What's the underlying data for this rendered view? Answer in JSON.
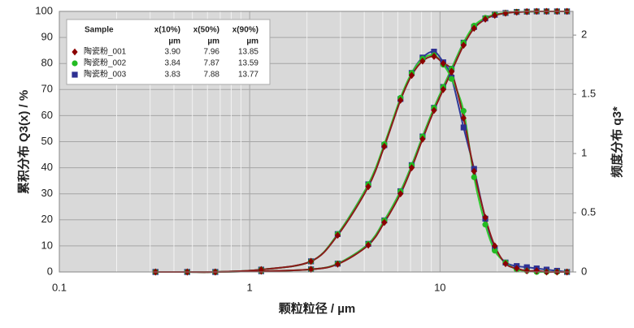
{
  "chart_data": {
    "type": "line",
    "xlabel": "颗粒粒径 / µm",
    "ylabel": "累积分布 Q3(x) / %",
    "y2label": "频度分布 q3*",
    "xscale": "log",
    "xlim": [
      0.1,
      50
    ],
    "xticks": [
      0.1,
      1,
      10
    ],
    "xminor": [
      0.2,
      0.3,
      0.4,
      0.5,
      0.6,
      0.7,
      0.8,
      0.9,
      2,
      3,
      4,
      5,
      6,
      7,
      8,
      9,
      20,
      30,
      40,
      50
    ],
    "ylim": [
      0,
      100
    ],
    "yticks": [
      0,
      10,
      20,
      30,
      40,
      50,
      60,
      70,
      80,
      90,
      100
    ],
    "y2lim": [
      0,
      2.2
    ],
    "y2ticks": [
      0,
      0.5,
      1,
      1.5,
      2
    ],
    "grid": true,
    "legend": {
      "sample_header": "Sample",
      "columns": [
        {
          "label": "x(10%)",
          "unit": "µm"
        },
        {
          "label": "x(50%)",
          "unit": "µm"
        },
        {
          "label": "x(90%)",
          "unit": "µm"
        }
      ]
    },
    "x": [
      0.32,
      0.47,
      0.66,
      1.15,
      2.1,
      2.9,
      4.2,
      5.1,
      6.2,
      7.1,
      8.1,
      9.3,
      10.4,
      11.5,
      13.3,
      15.1,
      17.3,
      19.4,
      22.1,
      25.3,
      28.6,
      32.2,
      36.3,
      41.2,
      46.5
    ],
    "series": [
      {
        "name": "陶瓷粉_003",
        "color": "#2e3a9a",
        "marker_color": "#2e3192",
        "marker": "square",
        "stats": [
          "3.83",
          "7.88",
          "13.77"
        ],
        "values": [
          0,
          0,
          0,
          0.3,
          1,
          3.2,
          10.8,
          19.8,
          31,
          41,
          52,
          63,
          71,
          78,
          88,
          94,
          97.3,
          98.7,
          99.4,
          99.8,
          99.9,
          100,
          100,
          100,
          100
        ],
        "q3_values": [
          0,
          0,
          0,
          0.02,
          0.09,
          0.32,
          0.74,
          1.07,
          1.46,
          1.68,
          1.81,
          1.86,
          1.77,
          1.64,
          1.22,
          0.87,
          0.45,
          0.2,
          0.08,
          0.05,
          0.04,
          0.03,
          0.02,
          0.01,
          0
        ]
      },
      {
        "name": "陶瓷粉_002",
        "color": "#33cc33",
        "marker_color": "#22bb22",
        "marker": "circle",
        "stats": [
          "3.84",
          "7.87",
          "13.59"
        ],
        "values": [
          0,
          0,
          0,
          0.3,
          1,
          3.2,
          10.8,
          19.8,
          31,
          41,
          52,
          63,
          71,
          78,
          88,
          94.5,
          97.5,
          98.8,
          99.4,
          99.8,
          99.9,
          100,
          100,
          100,
          100
        ],
        "q3_values": [
          0,
          0,
          0,
          0.02,
          0.09,
          0.32,
          0.74,
          1.08,
          1.47,
          1.68,
          1.8,
          1.83,
          1.75,
          1.63,
          1.36,
          0.8,
          0.4,
          0.18,
          0.08,
          0.02,
          0.01,
          0,
          0,
          0,
          0
        ]
      },
      {
        "name": "陶瓷粉_001",
        "color": "#8b1a1a",
        "marker_color": "#8b0000",
        "marker": "diamond",
        "stats": [
          "3.90",
          "7.96",
          "13.85"
        ],
        "values": [
          0,
          0,
          0,
          0.3,
          1,
          3,
          10.3,
          19,
          30,
          40,
          51,
          62,
          70,
          77,
          87,
          93.5,
          97,
          98.5,
          99.3,
          99.7,
          99.9,
          100,
          100,
          100,
          100
        ],
        "q3_values": [
          0,
          0,
          0,
          0.02,
          0.09,
          0.31,
          0.72,
          1.06,
          1.45,
          1.66,
          1.78,
          1.82,
          1.76,
          1.69,
          1.3,
          0.85,
          0.46,
          0.22,
          0.07,
          0.03,
          0.01,
          0.01,
          0,
          0,
          0
        ]
      }
    ]
  }
}
